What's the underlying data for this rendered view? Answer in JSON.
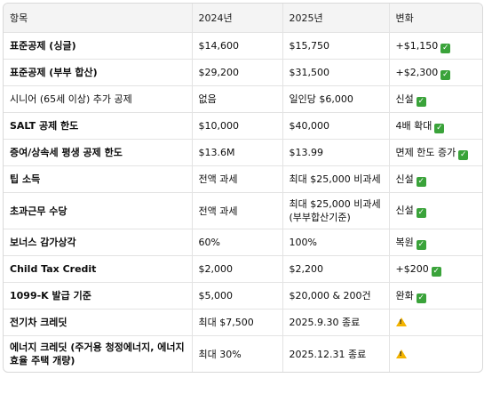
{
  "headers": [
    "항목",
    "2024년",
    "2025년",
    "변화"
  ],
  "rows": [
    {
      "item": "표준공제 (싱글)",
      "y2024": "$14,600",
      "y2025": "$15,750",
      "change": "+$1,150",
      "icon": "check-icon",
      "bold": true
    },
    {
      "item": "표준공제 (부부 합산)",
      "y2024": "$29,200",
      "y2025": "$31,500",
      "change": "+$2,300",
      "icon": "check-icon",
      "bold": true
    },
    {
      "item": "시니어 (65세 이상) 추가 공제",
      "y2024": "없음",
      "y2025": "일인당 $6,000",
      "change": "신설",
      "icon": "check-icon",
      "bold": false
    },
    {
      "item": "SALT 공제 한도",
      "y2024": "$10,000",
      "y2025": "$40,000",
      "change": "4배 확대",
      "icon": "check-icon",
      "bold": true
    },
    {
      "item": "증여/상속세 평생 공제 한도",
      "y2024": "$13.6M",
      "y2025": "$13.99",
      "change": "면제 한도 증가",
      "icon": "check-icon",
      "bold": true
    },
    {
      "item": "팁 소득",
      "y2024": "전액 과세",
      "y2025": "최대 $25,000 비과세",
      "change": "신설",
      "icon": "check-icon",
      "bold": true
    },
    {
      "item": "초과근무 수당",
      "y2024": "전액 과세",
      "y2025": "최대 $25,000 비과세 (부부합산기준)",
      "change": "신설",
      "icon": "check-icon",
      "bold": true,
      "tall": true
    },
    {
      "item": "보너스 감가상각",
      "y2024": "60%",
      "y2025": "100%",
      "change": "복원",
      "icon": "check-icon",
      "bold": true
    },
    {
      "item": "Child Tax Credit",
      "y2024": "$2,000",
      "y2025": "$2,200",
      "change": "+$200",
      "icon": "check-icon",
      "bold": true
    },
    {
      "item": "1099-K 발급 기준",
      "y2024": "$5,000",
      "y2025": "$20,000 & 200건",
      "change": "완화",
      "icon": "check-icon",
      "bold": true
    },
    {
      "item": "전기차 크레딧",
      "y2024": "최대 $7,500",
      "y2025": "2025.9.30 종료",
      "change": "",
      "icon": "warning-icon",
      "bold": true
    },
    {
      "item": "에너지 크레딧 (주거용 청정에너지, 에너지 효율 주택 개량)",
      "y2024": "최대 30%",
      "y2025": "2025.12.31 종료",
      "change": "",
      "icon": "warning-icon",
      "bold": true,
      "tall": true
    }
  ]
}
